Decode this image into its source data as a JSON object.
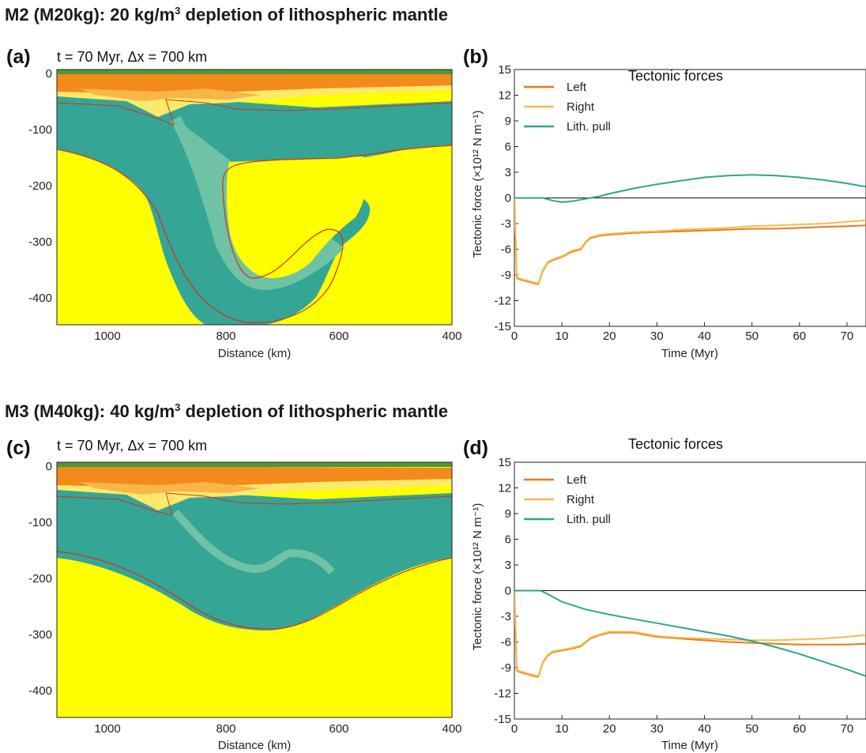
{
  "rows": [
    {
      "heading": "M2 (M20kg): 20 kg/m",
      "heading_sup": "3",
      "heading_rest": " depletion of lithospheric mantle",
      "section": {
        "label": "(a)",
        "subtitle": "t = 70 Myr, Δx = 700 km",
        "xlabel": "Distance (km)",
        "xticks": [
          "1000",
          "800",
          "600",
          "400"
        ],
        "yticks": [
          "0",
          "-100",
          "-200",
          "-300",
          "-400"
        ],
        "xlim": [
          1100,
          400
        ],
        "ylim": [
          -450,
          0
        ],
        "colors": {
          "crust_top": "#4a9a3a",
          "crust": "#f28a1c",
          "crust_light": "#f7b54a",
          "sediment": "#fde96a",
          "lithosphere": "#35a595",
          "slab_light": "#6fc2a3",
          "asthenosphere": "#ffff00",
          "contour": "#d63020"
        }
      },
      "chart": {
        "label": "(b)",
        "chart_data": {
          "type": "line",
          "title": "Tectonic forces",
          "xlabel": "Time (Myr)",
          "ylabel": "Tectonic force (×10¹² N m⁻¹)",
          "xlim": [
            0,
            74
          ],
          "ylim": [
            -15,
            15
          ],
          "xticks": [
            "0",
            "10",
            "20",
            "30",
            "40",
            "50",
            "60",
            "70"
          ],
          "yticks": [
            "-15",
            "-12",
            "-9",
            "-6",
            "-3",
            "0",
            "3",
            "6",
            "9",
            "12",
            "15"
          ],
          "legend_position": "top-left",
          "series": [
            {
              "name": "Left",
              "color": "#e8791e",
              "x": [
                0,
                0.5,
                1,
                3,
                5,
                6,
                7,
                8,
                10,
                12,
                14,
                15,
                16,
                18,
                20,
                25,
                30,
                35,
                40,
                45,
                50,
                55,
                60,
                65,
                70,
                74
              ],
              "y": [
                0,
                -9.3,
                -9.5,
                -9.8,
                -10.1,
                -8.5,
                -7.6,
                -7.3,
                -6.9,
                -6.3,
                -6,
                -5.2,
                -4.7,
                -4.4,
                -4.3,
                -4.1,
                -4,
                -3.9,
                -3.8,
                -3.7,
                -3.6,
                -3.6,
                -3.5,
                -3.4,
                -3.3,
                -3.2
              ]
            },
            {
              "name": "Right",
              "color": "#f5bc4a",
              "x": [
                0,
                0.5,
                1,
                3,
                5,
                6,
                7,
                8,
                10,
                12,
                14,
                15,
                16,
                18,
                20,
                25,
                30,
                35,
                40,
                45,
                50,
                55,
                60,
                65,
                70,
                74
              ],
              "y": [
                0,
                -9.2,
                -9.4,
                -9.7,
                -10,
                -8.4,
                -7.5,
                -7.2,
                -6.8,
                -6.2,
                -5.9,
                -5.1,
                -4.6,
                -4.3,
                -4.2,
                -4,
                -3.9,
                -3.7,
                -3.6,
                -3.5,
                -3.3,
                -3.2,
                -3.1,
                -3,
                -2.8,
                -2.6
              ]
            },
            {
              "name": "Lith. pull",
              "color": "#2fa393",
              "x": [
                0,
                2,
                4,
                6,
                8,
                10,
                12,
                14,
                16,
                18,
                20,
                25,
                30,
                35,
                40,
                45,
                50,
                55,
                60,
                65,
                70,
                74
              ],
              "y": [
                0,
                0,
                0,
                0,
                -0.3,
                -0.5,
                -0.4,
                -0.2,
                0,
                0.2,
                0.5,
                1.1,
                1.6,
                2,
                2.4,
                2.6,
                2.7,
                2.6,
                2.4,
                2.1,
                1.7,
                1.3
              ]
            }
          ]
        }
      }
    },
    {
      "heading": "M3 (M40kg): 40 kg/m",
      "heading_sup": "3",
      "heading_rest": " depletion of lithospheric mantle",
      "section": {
        "label": "(c)",
        "subtitle": "t = 70 Myr, Δx = 700 km",
        "xlabel": "Distance (km)",
        "xticks": [
          "1000",
          "800",
          "600",
          "400"
        ],
        "yticks": [
          "0",
          "-100",
          "-200",
          "-300",
          "-400"
        ],
        "xlim": [
          1100,
          400
        ],
        "ylim": [
          -450,
          0
        ],
        "colors": {
          "crust_top": "#4a9a3a",
          "crust": "#f28a1c",
          "crust_light": "#f7b54a",
          "sediment": "#fde96a",
          "lithosphere": "#35a595",
          "slab_light": "#6fc2a3",
          "asthenosphere": "#ffff00",
          "contour": "#d63020"
        }
      },
      "chart": {
        "label": "(d)",
        "chart_data": {
          "type": "line",
          "title": "Tectonic forces",
          "xlabel": "Time (Myr)",
          "ylabel": "Tectonic force (×10¹² N m⁻¹)",
          "xlim": [
            0,
            74
          ],
          "ylim": [
            -15,
            15
          ],
          "xticks": [
            "0",
            "10",
            "20",
            "30",
            "40",
            "50",
            "60",
            "70"
          ],
          "yticks": [
            "-15",
            "-12",
            "-9",
            "-6",
            "-3",
            "0",
            "3",
            "6",
            "9",
            "12",
            "15"
          ],
          "legend_position": "top-left",
          "series": [
            {
              "name": "Left",
              "color": "#e8791e",
              "x": [
                0,
                0.5,
                1,
                3,
                5,
                6,
                7,
                8,
                10,
                12,
                14,
                16,
                18,
                20,
                25,
                30,
                35,
                40,
                45,
                50,
                55,
                60,
                65,
                70,
                74
              ],
              "y": [
                0,
                -9.3,
                -9.5,
                -9.8,
                -10.1,
                -8.4,
                -7.6,
                -7.2,
                -7,
                -6.8,
                -6.5,
                -5.6,
                -5.2,
                -4.9,
                -4.9,
                -5.4,
                -5.6,
                -5.8,
                -6,
                -6.1,
                -6.2,
                -6.3,
                -6.3,
                -6.3,
                -6.2
              ]
            },
            {
              "name": "Right",
              "color": "#f5bc4a",
              "x": [
                0,
                0.5,
                1,
                3,
                5,
                6,
                7,
                8,
                10,
                12,
                14,
                16,
                18,
                20,
                25,
                30,
                35,
                40,
                45,
                50,
                55,
                60,
                65,
                70,
                74
              ],
              "y": [
                0,
                -9.2,
                -9.4,
                -9.7,
                -10,
                -8.3,
                -7.5,
                -7.1,
                -6.9,
                -6.7,
                -6.4,
                -5.5,
                -5.1,
                -4.8,
                -4.8,
                -5.3,
                -5.5,
                -5.6,
                -5.7,
                -5.8,
                -5.8,
                -5.7,
                -5.6,
                -5.4,
                -5.2
              ]
            },
            {
              "name": "Lith. pull",
              "color": "#2fa393",
              "x": [
                0,
                2,
                4,
                5.5,
                7,
                10,
                15,
                20,
                25,
                30,
                35,
                40,
                45,
                50,
                55,
                60,
                65,
                70,
                74
              ],
              "y": [
                0,
                0,
                0,
                0,
                -0.4,
                -1.3,
                -2.2,
                -2.8,
                -3.3,
                -3.8,
                -4.3,
                -4.8,
                -5.3,
                -5.9,
                -6.6,
                -7.4,
                -8.3,
                -9.2,
                -10
              ]
            }
          ]
        }
      }
    }
  ]
}
